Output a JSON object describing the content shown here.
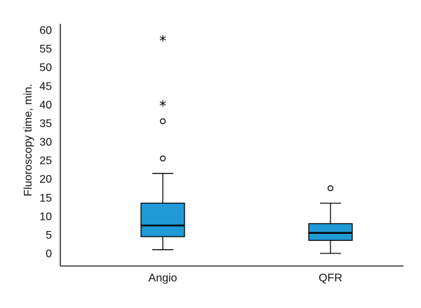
{
  "chart_data": {
    "type": "boxplot",
    "ylabel": "Fluoroscopy time, min.",
    "xlabel": "",
    "ylim": [
      0,
      60
    ],
    "yticks": [
      0,
      5,
      10,
      15,
      20,
      25,
      30,
      35,
      40,
      45,
      50,
      55,
      60
    ],
    "grid": false,
    "colors": {
      "box_fill": "#1f9ad6",
      "outline": "#000000"
    },
    "categories": [
      "Angio",
      "QFR"
    ],
    "boxes": [
      {
        "category": "Angio",
        "whisker_low": 1,
        "q1": 4.5,
        "median": 7.5,
        "q3": 13.5,
        "whisker_high": 21.5,
        "outliers_circle": [
          25.5,
          35.5
        ],
        "outliers_extreme": [
          40,
          57.5
        ]
      },
      {
        "category": "QFR",
        "whisker_low": 0,
        "q1": 3.5,
        "median": 5.5,
        "q3": 8,
        "whisker_high": 13.5,
        "outliers_circle": [
          17.5
        ],
        "outliers_extreme": []
      }
    ]
  }
}
